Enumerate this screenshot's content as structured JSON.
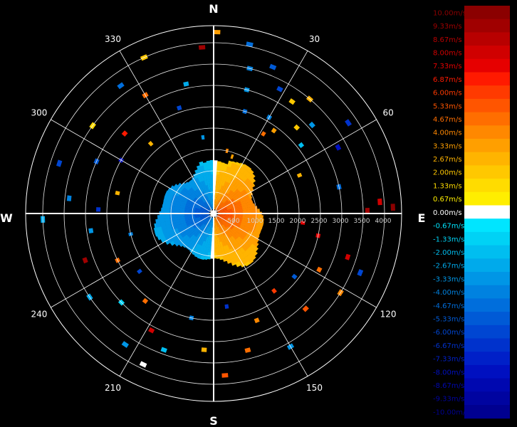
{
  "chart_data": {
    "type": "heatmap",
    "projection": "polar",
    "title": "",
    "cardinal_labels": [
      "N",
      "E",
      "S",
      "W"
    ],
    "azimuth_labels": [
      {
        "deg": 30,
        "label": "30"
      },
      {
        "deg": 60,
        "label": "60"
      },
      {
        "deg": 120,
        "label": "120"
      },
      {
        "deg": 150,
        "label": "150"
      },
      {
        "deg": 210,
        "label": "210"
      },
      {
        "deg": 240,
        "label": "240"
      },
      {
        "deg": 300,
        "label": "300"
      },
      {
        "deg": 330,
        "label": "330"
      }
    ],
    "range_labels": [
      {
        "range": 500,
        "label": "500"
      },
      {
        "range": 1000,
        "label": "1000"
      },
      {
        "range": 1500,
        "label": "1500"
      },
      {
        "range": 2000,
        "label": "2000"
      },
      {
        "range": 2500,
        "label": "2500"
      },
      {
        "range": 3000,
        "label": "3000"
      },
      {
        "range": 3500,
        "label": "3500"
      },
      {
        "range": 4000,
        "label": "4000"
      }
    ],
    "max_range": 4400,
    "echo_region": {
      "inner_range": 0,
      "outer_range": 1500,
      "approaching_side": "west",
      "receding_side": "east"
    },
    "colorbar": {
      "levels": [
        {
          "label": "10.00m/s",
          "color": "#8b0000"
        },
        {
          "label": "9.33m/s",
          "color": "#a00000"
        },
        {
          "label": "8.67m/s",
          "color": "#b80000"
        },
        {
          "label": "8.00m/s",
          "color": "#d00000"
        },
        {
          "label": "7.33m/s",
          "color": "#e60000"
        },
        {
          "label": "6.87m/s",
          "color": "#ff1a00"
        },
        {
          "label": "6.00m/s",
          "color": "#ff3a00"
        },
        {
          "label": "5.33m/s",
          "color": "#ff5500"
        },
        {
          "label": "4.67m/s",
          "color": "#ff6e00"
        },
        {
          "label": "4.00m/s",
          "color": "#ff8800"
        },
        {
          "label": "3.33m/s",
          "color": "#ff9f00"
        },
        {
          "label": "2.67m/s",
          "color": "#ffb400"
        },
        {
          "label": "2.00m/s",
          "color": "#ffc800"
        },
        {
          "label": "1.33m/s",
          "color": "#ffdc00"
        },
        {
          "label": "0.67m/s",
          "color": "#ffee00"
        },
        {
          "label": "0.00m/s",
          "color": "#ffffff"
        },
        {
          "label": "-0.67m/s",
          "color": "#00e5ff"
        },
        {
          "label": "-1.33m/s",
          "color": "#00d2f5"
        },
        {
          "label": "-2.00m/s",
          "color": "#00bef0"
        },
        {
          "label": "-2.67m/s",
          "color": "#00aaeb"
        },
        {
          "label": "-3.33m/s",
          "color": "#0096e6"
        },
        {
          "label": "-4.00m/s",
          "color": "#0082e0"
        },
        {
          "label": "-4.67m/s",
          "color": "#006edc"
        },
        {
          "label": "-5.33m/s",
          "color": "#005ad6"
        },
        {
          "label": "-6.00m/s",
          "color": "#0046d2"
        },
        {
          "label": "-6.67m/s",
          "color": "#0032cc"
        },
        {
          "label": "-7.33m/s",
          "color": "#0020c8"
        },
        {
          "label": "-8.00m/s",
          "color": "#0010c0"
        },
        {
          "label": "-8.67m/s",
          "color": "#0008b0"
        },
        {
          "label": "-9.33m/s",
          "color": "#0004a0"
        },
        {
          "label": "-10.00m/s",
          "color": "#000090"
        }
      ]
    },
    "scatter_gates": [
      {
        "az": 1,
        "range": 4250,
        "v": 3.3
      },
      {
        "az": 356,
        "range": 3900,
        "v": 9.3
      },
      {
        "az": 12,
        "range": 4050,
        "v": -4.7
      },
      {
        "az": 14,
        "range": 3500,
        "v": -4
      },
      {
        "az": 15,
        "range": 3000,
        "v": -3.3
      },
      {
        "az": 17,
        "range": 2500,
        "v": -4.7
      },
      {
        "az": 12,
        "range": 1500,
        "v": 4
      },
      {
        "az": 18,
        "range": 1400,
        "v": 3.3
      },
      {
        "az": 22,
        "range": 3700,
        "v": -5.3
      },
      {
        "az": 28,
        "range": 3300,
        "v": -6
      },
      {
        "az": 30,
        "range": 2600,
        "v": -4
      },
      {
        "az": 32,
        "range": 2200,
        "v": 4.7
      },
      {
        "az": 35,
        "range": 3200,
        "v": 2
      },
      {
        "az": 36,
        "range": 2400,
        "v": 3.3
      },
      {
        "az": 40,
        "range": 3500,
        "v": 2.7
      },
      {
        "az": 44,
        "range": 2800,
        "v": 2
      },
      {
        "az": 48,
        "range": 3100,
        "v": -3.3
      },
      {
        "az": 52,
        "range": 2600,
        "v": -2
      },
      {
        "az": 56,
        "range": 3800,
        "v": -6.7
      },
      {
        "az": 62,
        "range": 3300,
        "v": -8
      },
      {
        "az": 66,
        "range": 2200,
        "v": 2.7
      },
      {
        "az": 78,
        "range": 3000,
        "v": -4.7
      },
      {
        "az": 86,
        "range": 3900,
        "v": 8
      },
      {
        "az": 88,
        "range": 4200,
        "v": 10
      },
      {
        "az": 89,
        "range": 3600,
        "v": 9.3
      },
      {
        "az": 96,
        "range": 2100,
        "v": 7.3
      },
      {
        "az": 102,
        "range": 2500,
        "v": 7.3
      },
      {
        "az": 108,
        "range": 3300,
        "v": 8
      },
      {
        "az": 112,
        "range": 3700,
        "v": -6
      },
      {
        "az": 118,
        "range": 2800,
        "v": 4.7
      },
      {
        "az": 122,
        "range": 3500,
        "v": 4
      },
      {
        "az": 128,
        "range": 2400,
        "v": -5.3
      },
      {
        "az": 136,
        "range": 3100,
        "v": 5.3
      },
      {
        "az": 142,
        "range": 2300,
        "v": 6
      },
      {
        "az": 150,
        "range": 3600,
        "v": -3.3
      },
      {
        "az": 158,
        "range": 2700,
        "v": 4
      },
      {
        "az": 166,
        "range": 3300,
        "v": 4.7
      },
      {
        "az": 172,
        "range": 2200,
        "v": -6.7
      },
      {
        "az": 176,
        "range": 3800,
        "v": 5.3
      },
      {
        "az": 184,
        "range": 3200,
        "v": 2.7
      },
      {
        "az": 192,
        "range": 2500,
        "v": -4
      },
      {
        "az": 200,
        "range": 3400,
        "v": -2
      },
      {
        "az": 205,
        "range": 3900,
        "v": 0
      },
      {
        "az": 208,
        "range": 3100,
        "v": 8
      },
      {
        "az": 214,
        "range": 3700,
        "v": -3.3
      },
      {
        "az": 218,
        "range": 2600,
        "v": 4.7
      },
      {
        "az": 226,
        "range": 3000,
        "v": -1.3
      },
      {
        "az": 232,
        "range": 2200,
        "v": -6
      },
      {
        "az": 236,
        "range": 3500,
        "v": -2.7
      },
      {
        "az": 244,
        "range": 2500,
        "v": 4.7
      },
      {
        "az": 250,
        "range": 3200,
        "v": 9.3
      },
      {
        "az": 256,
        "range": 2000,
        "v": -4
      },
      {
        "az": 262,
        "range": 2900,
        "v": -3.3
      },
      {
        "az": 268,
        "range": 4000,
        "v": -2.7
      },
      {
        "az": 272,
        "range": 2700,
        "v": -6.7
      },
      {
        "az": 276,
        "range": 3400,
        "v": -4
      },
      {
        "az": 282,
        "range": 2300,
        "v": 2.7
      },
      {
        "az": 288,
        "range": 3800,
        "v": -6
      },
      {
        "az": 294,
        "range": 3000,
        "v": -5.3
      },
      {
        "az": 300,
        "range": 2500,
        "v": -8
      },
      {
        "az": 306,
        "range": 3500,
        "v": 1.3
      },
      {
        "az": 312,
        "range": 2800,
        "v": 6.7
      },
      {
        "az": 318,
        "range": 2200,
        "v": 2.7
      },
      {
        "az": 324,
        "range": 3700,
        "v": -4.7
      },
      {
        "az": 330,
        "range": 3200,
        "v": 4.7
      },
      {
        "az": 336,
        "range": 4000,
        "v": 2
      },
      {
        "az": 342,
        "range": 2600,
        "v": -6
      },
      {
        "az": 348,
        "range": 3100,
        "v": -2.7
      },
      {
        "az": 352,
        "range": 1800,
        "v": -3.3
      }
    ]
  }
}
